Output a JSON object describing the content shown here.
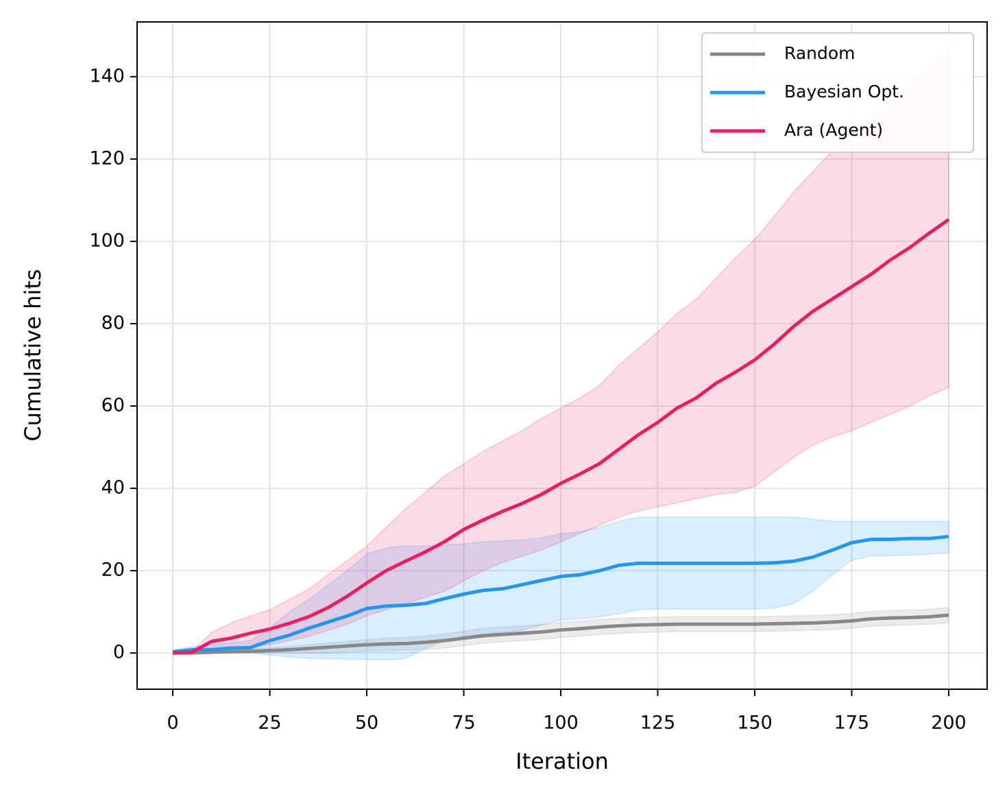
{
  "chart_data": {
    "type": "line",
    "xlabel": "Iteration",
    "ylabel": "Cumulative hits",
    "x": [
      0,
      5,
      10,
      15,
      20,
      25,
      30,
      35,
      40,
      45,
      50,
      55,
      60,
      65,
      70,
      75,
      80,
      85,
      90,
      95,
      100,
      105,
      110,
      115,
      120,
      125,
      130,
      135,
      140,
      145,
      150,
      155,
      160,
      165,
      170,
      175,
      180,
      185,
      190,
      195,
      200
    ],
    "series": [
      {
        "name": "Random",
        "color": "#888888",
        "values": [
          0,
          0,
          0.2,
          0.3,
          0.4,
          0.6,
          0.8,
          1.1,
          1.4,
          1.7,
          2,
          2.2,
          2.3,
          2.6,
          3,
          3.6,
          4.2,
          4.5,
          4.8,
          5.1,
          5.6,
          5.9,
          6.3,
          6.6,
          6.8,
          6.9,
          7,
          7,
          7,
          7,
          7,
          7.1,
          7.2,
          7.3,
          7.5,
          7.8,
          8.3,
          8.5,
          8.6,
          8.8,
          9.2
        ],
        "lower": [
          0,
          0,
          0,
          0,
          0,
          0,
          0,
          0,
          0,
          0.2,
          0.4,
          0.6,
          0.7,
          0.9,
          1.2,
          1.8,
          2.4,
          2.7,
          3,
          3.3,
          3.8,
          4.1,
          4.5,
          4.8,
          5,
          5.1,
          5.2,
          5.2,
          5.2,
          5.2,
          5.2,
          5.3,
          5.4,
          5.5,
          5.7,
          6,
          6.5,
          6.7,
          6.8,
          7,
          7.3
        ],
        "upper": [
          0,
          0,
          0.6,
          0.8,
          1,
          1.3,
          1.6,
          2,
          2.4,
          2.8,
          3.2,
          3.6,
          3.8,
          4.1,
          4.6,
          5.3,
          6,
          6.3,
          6.6,
          6.9,
          7.4,
          7.7,
          8.1,
          8.4,
          8.6,
          8.7,
          8.8,
          8.8,
          8.8,
          8.8,
          8.8,
          8.9,
          9,
          9.1,
          9.3,
          9.6,
          10.1,
          10.3,
          10.4,
          10.6,
          11.1
        ]
      },
      {
        "name": "Bayesian Opt.",
        "color": "#2196f3",
        "values": [
          0.3,
          0.8,
          0.8,
          1.2,
          1.3,
          3,
          4.3,
          6,
          7.5,
          9,
          10.8,
          11.4,
          11.6,
          12,
          13.2,
          14.3,
          15.2,
          15.6,
          16.6,
          17.6,
          18.6,
          19,
          20,
          21.3,
          21.8,
          21.8,
          21.8,
          21.8,
          21.8,
          21.8,
          21.8,
          21.9,
          22.3,
          23.3,
          25,
          26.8,
          27.6,
          27.6,
          27.8,
          27.8,
          28.3
        ],
        "lower": [
          0,
          0,
          0,
          0,
          0,
          -0.5,
          -1,
          -1.3,
          -1.4,
          -1.5,
          -1.6,
          -1.7,
          -1.3,
          1,
          3,
          4,
          4.5,
          5,
          5.5,
          6.8,
          8,
          8.3,
          8.8,
          9.5,
          10.5,
          10.7,
          10.7,
          10.7,
          10.7,
          10.7,
          10.7,
          10.9,
          12,
          15,
          19,
          22.5,
          23.6,
          23.6,
          23.8,
          24,
          24.3
        ],
        "upper": [
          0.5,
          1.5,
          2,
          2.5,
          3,
          6,
          10,
          13,
          16.5,
          20,
          24,
          25.5,
          26,
          26,
          26.2,
          26.5,
          27,
          27.2,
          27.5,
          28,
          29,
          29.5,
          30.5,
          32,
          33,
          33,
          33,
          33,
          33,
          33,
          33,
          33,
          33,
          32.5,
          32,
          32,
          32,
          32,
          32,
          32,
          32
        ]
      },
      {
        "name": "Ara (Agent)",
        "color": "#e91e63",
        "values": [
          0,
          0.2,
          2.8,
          3.6,
          4.8,
          5.8,
          7.2,
          8.8,
          11,
          13.8,
          17,
          20,
          22.3,
          24.5,
          27,
          30,
          32.3,
          34.4,
          36.3,
          38.5,
          41.2,
          43.5,
          46,
          49.5,
          53,
          56,
          59.5,
          62,
          65.5,
          68.2,
          71.2,
          75,
          79.3,
          83,
          86,
          89,
          92,
          95.5,
          98.5,
          102,
          105.3
        ],
        "lower": [
          0,
          0,
          0.5,
          0.8,
          1.5,
          2,
          3,
          4,
          5.5,
          7,
          9,
          10.5,
          12,
          13.5,
          15,
          17.5,
          20,
          22,
          23.5,
          25,
          27,
          29,
          31,
          33,
          34.5,
          35.5,
          36.5,
          37.5,
          38.5,
          39,
          40.5,
          44,
          47.5,
          50.5,
          52.5,
          54,
          56,
          58,
          60,
          62.5,
          64.5
        ],
        "upper": [
          0,
          0.5,
          5,
          7.3,
          9,
          10.5,
          13,
          15.5,
          19,
          22.5,
          26,
          30.5,
          35,
          39,
          43,
          46,
          49,
          51.5,
          54,
          57,
          59.5,
          62,
          65,
          70,
          74,
          78,
          82.5,
          86,
          91,
          96,
          100.5,
          106,
          112,
          117,
          122,
          126,
          130,
          134,
          138,
          143,
          146
        ]
      }
    ],
    "xlim": [
      -9.2,
      209.9
    ],
    "ylim": [
      -8.8,
      153.3
    ],
    "xticks": [
      0,
      25,
      50,
      75,
      100,
      125,
      150,
      175,
      200
    ],
    "yticks": [
      0,
      20,
      40,
      60,
      80,
      100,
      120,
      140
    ],
    "grid": true,
    "legend": "upper right",
    "band_opacity": 0.16
  }
}
